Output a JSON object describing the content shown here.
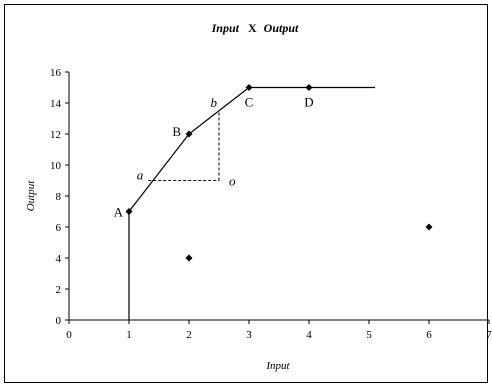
{
  "chart_data": {
    "type": "scatter",
    "title_parts": [
      "Input",
      "X",
      "Output"
    ],
    "xlabel": "Input",
    "ylabel": "Output",
    "xlim": [
      0,
      7
    ],
    "ylim": [
      0,
      16
    ],
    "xticks": [
      "0",
      "1",
      "2",
      "3",
      "4",
      "5",
      "6",
      "7"
    ],
    "yticks": [
      "0",
      "2",
      "4",
      "6",
      "8",
      "10",
      "12",
      "14",
      "16"
    ],
    "grid": false,
    "legend": "none",
    "points": [
      {
        "label": "A",
        "x": 1,
        "y": 7
      },
      {
        "label": "B",
        "x": 2,
        "y": 12
      },
      {
        "label": "C",
        "x": 3,
        "y": 15
      },
      {
        "label": "D",
        "x": 4,
        "y": 15
      },
      {
        "label": "",
        "x": 2,
        "y": 4
      },
      {
        "label": "",
        "x": 6,
        "y": 6
      },
      {
        "label": "o",
        "x": 2.5,
        "y": 9
      }
    ],
    "frontier": [
      [
        1,
        0
      ],
      [
        1,
        7
      ],
      [
        2,
        12
      ],
      [
        3,
        15
      ],
      [
        5.1,
        15
      ]
    ],
    "dashed_guides": [
      [
        [
          1.32,
          9
        ],
        [
          2.5,
          9
        ]
      ],
      [
        [
          2.5,
          9
        ],
        [
          2.5,
          13.5
        ]
      ]
    ],
    "guide_labels": [
      {
        "label": "a",
        "x": 1.32,
        "y": 9
      },
      {
        "label": "b",
        "x": 2.5,
        "y": 13.5
      }
    ],
    "marker_color": "#000000"
  }
}
